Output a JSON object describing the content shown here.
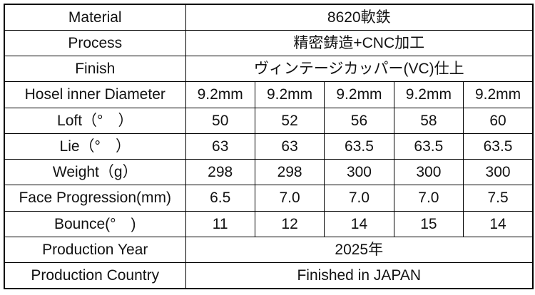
{
  "table": {
    "border_color": "#000000",
    "background_color": "#ffffff",
    "text_color": "#121212",
    "rows": [
      {
        "label": "Material",
        "value": "8620軟鉄"
      },
      {
        "label": "Process",
        "value": "精密鋳造+CNC加工"
      },
      {
        "label": "Finish",
        "value": "ヴィンテージカッパー(VC)仕上"
      },
      {
        "label": "Hosel inner Diameter",
        "values": [
          "9.2mm",
          "9.2mm",
          "9.2mm",
          "9.2mm",
          "9.2mm"
        ]
      },
      {
        "label": "Loft（°　）",
        "values": [
          "50",
          "52",
          "56",
          "58",
          "60"
        ]
      },
      {
        "label": "Lie（°　）",
        "values": [
          "63",
          "63",
          "63.5",
          "63.5",
          "63.5"
        ]
      },
      {
        "label": "Weight（g）",
        "values": [
          "298",
          "298",
          "300",
          "300",
          "300"
        ]
      },
      {
        "label": "Face Progression(mm)",
        "values": [
          "6.5",
          "7.0",
          "7.0",
          "7.0",
          "7.5"
        ]
      },
      {
        "label": "Bounce(°　)",
        "values": [
          "11",
          "12",
          "14",
          "15",
          "14"
        ]
      },
      {
        "label": "Production Year",
        "value": "2025年"
      },
      {
        "label": "Production Country",
        "value": "Finished in JAPAN"
      }
    ]
  }
}
